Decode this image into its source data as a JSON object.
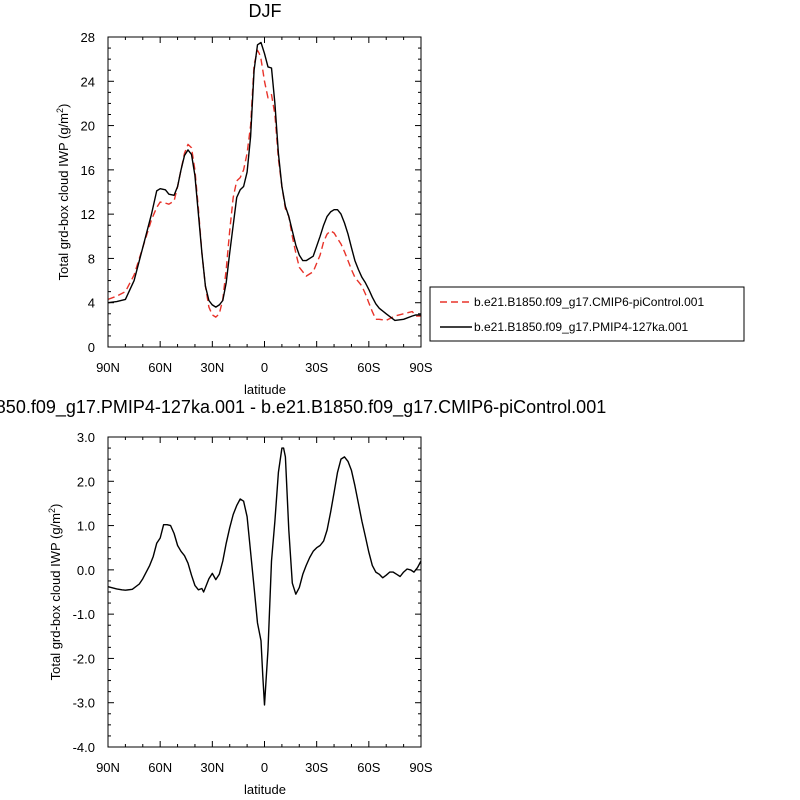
{
  "chart_data": [
    {
      "type": "line",
      "title": "DJF",
      "xlabel": "latitude",
      "ylabel": "Total grd-box cloud IWP (g/m",
      "ylabel_sup": "2",
      "ylabel_tail": ")",
      "xlim": [
        90,
        -90
      ],
      "ylim": [
        0,
        28
      ],
      "x_ticks": [
        90,
        60,
        30,
        0,
        -30,
        -60,
        -90
      ],
      "x_tick_labels": [
        "90N",
        "60N",
        "30N",
        "0",
        "30S",
        "60S",
        "90S"
      ],
      "y_ticks": [
        0,
        4,
        8,
        12,
        16,
        20,
        24,
        28
      ],
      "y_tick_labels": [
        "0",
        "4",
        "8",
        "12",
        "16",
        "20",
        "24",
        "28"
      ],
      "legend_position": "right",
      "series": [
        {
          "name": "b.e21.B1850.f09_g17.CMIP6-piControl.001",
          "color": "#e8332a",
          "dash": "dashed",
          "x": [
            90,
            85,
            80,
            75,
            70,
            65,
            62,
            60,
            57,
            55,
            52,
            50,
            48,
            46,
            44,
            42,
            40,
            38,
            36,
            34,
            32,
            30,
            28,
            26,
            24,
            22,
            20,
            18,
            16,
            14,
            12,
            10,
            8,
            6,
            4,
            3,
            2,
            1,
            0,
            -2,
            -4,
            -6,
            -8,
            -10,
            -12,
            -14,
            -16,
            -18,
            -20,
            -24,
            -28,
            -32,
            -34,
            -36,
            -38,
            -40,
            -42,
            -44,
            -46,
            -48,
            -50,
            -52,
            -54,
            -56,
            -58,
            -60,
            -62,
            -64,
            -66,
            -70,
            -75,
            -80,
            -85,
            -87,
            -90
          ],
          "y": [
            4.3,
            4.6,
            5.0,
            6.5,
            9.0,
            11.5,
            12.6,
            13.1,
            13.0,
            12.9,
            13.2,
            14.5,
            16.0,
            17.5,
            18.3,
            18.0,
            16.0,
            12.5,
            8.5,
            5.5,
            3.6,
            2.9,
            2.7,
            3.0,
            4.3,
            7.0,
            10.5,
            13.5,
            15.0,
            15.3,
            16.0,
            17.5,
            20.0,
            25.5,
            26.8,
            26.5,
            26.0,
            25.0,
            24.0,
            22.5,
            22.8,
            21.0,
            17.0,
            14.5,
            12.5,
            11.8,
            10.0,
            8.5,
            7.2,
            6.4,
            6.8,
            8.3,
            9.5,
            10.2,
            10.5,
            10.3,
            9.8,
            9.3,
            8.6,
            7.8,
            7.0,
            6.3,
            5.9,
            5.5,
            4.8,
            4.0,
            3.2,
            2.5,
            2.5,
            2.4,
            2.8,
            3.0,
            3.2,
            2.8,
            2.8
          ]
        },
        {
          "name": "b.e21.B1850.f09_g17.PMIP4-127ka.001",
          "color": "#000000",
          "dash": "solid",
          "x": [
            90,
            85,
            80,
            75,
            70,
            65,
            62,
            60,
            57,
            55,
            52,
            50,
            48,
            46,
            44,
            42,
            40,
            38,
            36,
            34,
            32,
            30,
            28,
            26,
            24,
            22,
            20,
            18,
            16,
            14,
            12,
            10,
            8,
            6,
            4,
            2,
            0,
            -2,
            -4,
            -6,
            -8,
            -10,
            -12,
            -14,
            -16,
            -18,
            -20,
            -22,
            -24,
            -28,
            -32,
            -34,
            -36,
            -38,
            -40,
            -42,
            -44,
            -46,
            -48,
            -50,
            -52,
            -54,
            -56,
            -58,
            -60,
            -62,
            -64,
            -66,
            -70,
            -75,
            -80,
            -85,
            -87,
            -90
          ],
          "y": [
            4.0,
            4.1,
            4.3,
            6.0,
            9.0,
            12.0,
            14.1,
            14.3,
            14.2,
            13.8,
            13.7,
            14.5,
            16.0,
            17.3,
            17.8,
            17.4,
            15.5,
            12.0,
            8.5,
            5.5,
            4.2,
            3.8,
            3.6,
            3.8,
            4.2,
            5.8,
            8.5,
            11.0,
            13.5,
            14.2,
            14.5,
            15.8,
            19.0,
            25.0,
            27.3,
            27.5,
            26.5,
            25.3,
            25.2,
            22.0,
            17.5,
            14.5,
            12.7,
            11.8,
            10.5,
            9.2,
            8.3,
            7.8,
            7.8,
            8.2,
            10.0,
            11.0,
            11.8,
            12.2,
            12.4,
            12.4,
            12.0,
            11.2,
            10.2,
            9.0,
            7.8,
            7.0,
            6.3,
            5.8,
            5.2,
            4.5,
            3.9,
            3.5,
            3.0,
            2.4,
            2.5,
            2.8,
            2.9,
            2.9
          ]
        }
      ]
    },
    {
      "type": "line",
      "title": "850.f09_g17.PMIP4-127ka.001 - b.e21.B1850.f09_g17.CMIP6-piControl.001",
      "xlabel": "latitude",
      "ylabel": "Total grd-box cloud IWP (g/m",
      "ylabel_sup": "2",
      "ylabel_tail": ")",
      "xlim": [
        90,
        -90
      ],
      "ylim": [
        -4.0,
        3.0
      ],
      "x_ticks": [
        90,
        60,
        30,
        0,
        -30,
        -60,
        -90
      ],
      "x_tick_labels": [
        "90N",
        "60N",
        "30N",
        "0",
        "30S",
        "60S",
        "90S"
      ],
      "y_ticks": [
        -4,
        -3,
        -2,
        -1,
        0,
        1,
        2,
        3
      ],
      "y_tick_labels": [
        "-4.0",
        "-3.0",
        "-2.0",
        "-1.0",
        "0.0",
        "1.0",
        "2.0",
        "3.0"
      ],
      "series": [
        {
          "color": "#000000",
          "dash": "solid",
          "x": [
            90,
            85,
            82,
            80,
            76,
            72,
            70,
            66,
            64,
            62,
            60,
            58,
            56,
            54,
            52,
            50,
            48,
            46,
            44,
            42,
            40,
            38,
            36,
            35,
            34,
            32,
            30,
            28,
            26,
            24,
            22,
            20,
            18,
            16,
            14,
            12,
            10,
            8,
            6,
            4,
            2,
            1,
            0,
            -2,
            -4,
            -6,
            -8,
            -10,
            -11,
            -12,
            -14,
            -16,
            -18,
            -20,
            -22,
            -24,
            -26,
            -28,
            -30,
            -32,
            -34,
            -36,
            -38,
            -40,
            -42,
            -44,
            -46,
            -48,
            -50,
            -52,
            -54,
            -56,
            -58,
            -60,
            -62,
            -64,
            -66,
            -68,
            -70,
            -72,
            -74,
            -76,
            -78,
            -80,
            -82,
            -84,
            -86,
            -88,
            -90
          ],
          "y": [
            -0.38,
            -0.43,
            -0.45,
            -0.46,
            -0.44,
            -0.32,
            -0.2,
            0.1,
            0.3,
            0.6,
            0.72,
            1.02,
            1.02,
            1.0,
            0.82,
            0.55,
            0.42,
            0.32,
            0.15,
            -0.12,
            -0.35,
            -0.45,
            -0.42,
            -0.5,
            -0.4,
            -0.2,
            -0.08,
            -0.22,
            -0.1,
            0.2,
            0.6,
            0.95,
            1.25,
            1.45,
            1.6,
            1.55,
            1.2,
            0.4,
            -0.4,
            -1.2,
            -1.6,
            -2.4,
            -3.05,
            -1.8,
            0.2,
            1.1,
            2.2,
            2.75,
            2.75,
            2.55,
            0.9,
            -0.3,
            -0.55,
            -0.4,
            -0.1,
            0.1,
            0.28,
            0.42,
            0.5,
            0.55,
            0.65,
            0.9,
            1.3,
            1.75,
            2.2,
            2.5,
            2.55,
            2.45,
            2.25,
            1.9,
            1.5,
            1.1,
            0.75,
            0.4,
            0.1,
            -0.05,
            -0.1,
            -0.18,
            -0.12,
            -0.05,
            -0.05,
            -0.1,
            -0.15,
            -0.05,
            0.02,
            0.0,
            -0.05,
            0.05,
            0.2
          ]
        }
      ]
    }
  ]
}
